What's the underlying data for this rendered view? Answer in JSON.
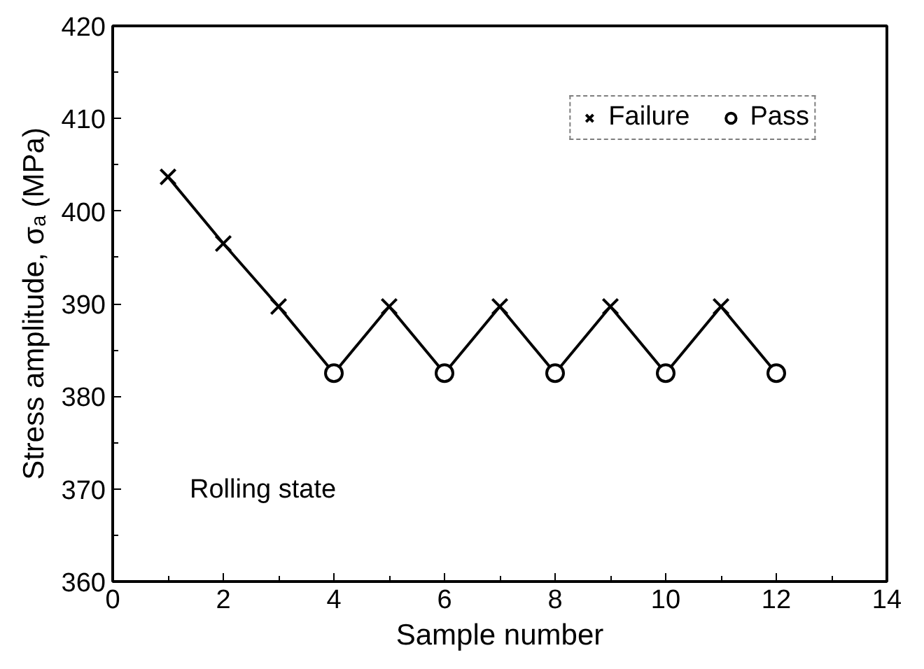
{
  "chart_data": {
    "type": "line",
    "xlabel": "Sample number",
    "ylabel": "Stress amplitude, σₐ (MPa)",
    "series": [
      {
        "color": "#000000",
        "marker": "none",
        "x": [
          1,
          2,
          3,
          4,
          5,
          6,
          7,
          8,
          9,
          10,
          11,
          12
        ],
        "values": [
          403.7,
          396.5,
          389.7,
          382.5,
          389.7,
          382.5,
          389.7,
          382.5,
          389.7,
          382.5,
          389.7,
          382.5
        ]
      },
      {
        "type": "scatter",
        "name": "Failure",
        "color": "#000000",
        "marker": "cross",
        "x": [
          1,
          2,
          3,
          5,
          7,
          9,
          11
        ],
        "values": [
          403.7,
          396.5,
          389.7,
          389.7,
          389.7,
          389.7,
          389.7
        ]
      },
      {
        "type": "scatter",
        "name": "Pass",
        "color": "#000000",
        "marker": "circle",
        "x": [
          4,
          6,
          8,
          10,
          12
        ],
        "values": [
          382.5,
          382.5,
          382.5,
          382.5,
          382.5
        ]
      }
    ],
    "xlim": [
      0,
      14
    ],
    "xticks": [
      0,
      2,
      4,
      6,
      8,
      10,
      12,
      14
    ],
    "ylim": [
      360,
      420
    ],
    "yticks": [
      360,
      370,
      380,
      390,
      400,
      410,
      420
    ],
    "grid": false,
    "legend": "top right",
    "annotations": [
      "Rolling state"
    ]
  }
}
